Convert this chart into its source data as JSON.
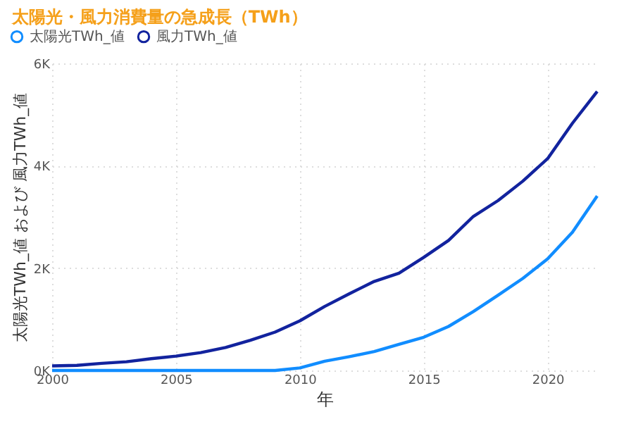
{
  "chart_data": {
    "type": "line",
    "title": "太陽光・風力消費量の急成長（TWh）",
    "xlabel": "年",
    "ylabel": "太陽光TWh_値 および 風力TWh_値",
    "x": [
      2000,
      2001,
      2002,
      2003,
      2004,
      2005,
      2006,
      2007,
      2008,
      2009,
      2010,
      2011,
      2012,
      2013,
      2014,
      2015,
      2016,
      2017,
      2018,
      2019,
      2020,
      2021,
      2022
    ],
    "series": [
      {
        "name": "太陽光TWh_値",
        "color": "#118dff",
        "values": [
          0,
          0,
          0,
          0,
          0,
          0,
          0,
          0,
          0,
          0,
          50,
          180,
          270,
          370,
          510,
          650,
          860,
          1150,
          1470,
          1800,
          2180,
          2700,
          3410
        ]
      },
      {
        "name": "風力TWh_値",
        "color": "#12239e",
        "values": [
          90,
          100,
          140,
          170,
          230,
          280,
          350,
          450,
          590,
          750,
          970,
          1250,
          1500,
          1740,
          1900,
          2210,
          2540,
          3010,
          3320,
          3700,
          4140,
          4830,
          5450
        ]
      }
    ],
    "xlim": [
      2000,
      2022
    ],
    "xticks": [
      2000,
      2005,
      2010,
      2015,
      2020
    ],
    "ylim": [
      0,
      6000
    ],
    "yticks": [
      {
        "value": 0,
        "label": "0K"
      },
      {
        "value": 2000,
        "label": "2K"
      },
      {
        "value": 4000,
        "label": "4K"
      },
      {
        "value": 6000,
        "label": "6K"
      }
    ],
    "grid": true,
    "legend": "top left",
    "marker": "none",
    "line_style": "solid"
  }
}
